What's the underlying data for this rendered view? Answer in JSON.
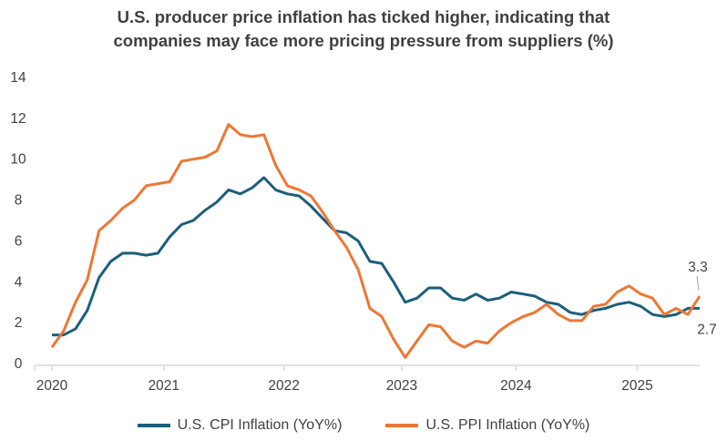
{
  "chart_data": {
    "type": "line",
    "title": "U.S. producer price inflation has ticked higher, indicating that companies may face more pricing pressure from suppliers (%)",
    "title_lines": [
      "U.S. producer price inflation has ticked higher, indicating that",
      "companies may face more pricing pressure from suppliers (%)"
    ],
    "xlabel": "",
    "ylabel": "",
    "ylim": [
      0,
      14
    ],
    "yticks": [
      0,
      2,
      4,
      6,
      8,
      10,
      12,
      14
    ],
    "x_unit": "monthly observation index",
    "xlim": [
      0,
      55
    ],
    "xticks": [
      {
        "label": "2020",
        "at": 0
      },
      {
        "label": "2021",
        "at": 9.5
      },
      {
        "label": "2022",
        "at": 19.7
      },
      {
        "label": "2023",
        "at": 29.7
      },
      {
        "label": "2024",
        "at": 39.4
      },
      {
        "label": "2025",
        "at": 49.7
      }
    ],
    "grid": false,
    "legend_position": "bottom",
    "series": [
      {
        "name": "U.S. CPI Inflation (YoY%)",
        "color": "#1b5f7d",
        "values": [
          1.4,
          1.4,
          1.7,
          2.6,
          4.2,
          5.0,
          5.4,
          5.4,
          5.3,
          5.4,
          6.2,
          6.8,
          7.0,
          7.5,
          7.9,
          8.5,
          8.3,
          8.6,
          9.1,
          8.5,
          8.3,
          8.2,
          7.7,
          7.1,
          6.5,
          6.4,
          6.0,
          5.0,
          4.9,
          4.0,
          3.0,
          3.2,
          3.7,
          3.7,
          3.2,
          3.1,
          3.4,
          3.1,
          3.2,
          3.5,
          3.4,
          3.3,
          3.0,
          2.9,
          2.5,
          2.4,
          2.6,
          2.7,
          2.9,
          3.0,
          2.8,
          2.4,
          2.3,
          2.4,
          2.7,
          2.7
        ],
        "end_label": "2.7"
      },
      {
        "name": "U.S. PPI Inflation (YoY%)",
        "color": "#ee7733",
        "values": [
          0.8,
          1.6,
          3.0,
          4.1,
          6.5,
          7.0,
          7.6,
          8.0,
          8.7,
          8.8,
          8.9,
          9.9,
          10.0,
          10.1,
          10.4,
          11.7,
          11.2,
          11.1,
          11.2,
          9.7,
          8.7,
          8.5,
          8.2,
          7.4,
          6.5,
          5.7,
          4.6,
          2.7,
          2.3,
          1.2,
          0.3,
          1.1,
          1.9,
          1.8,
          1.1,
          0.8,
          1.1,
          1.0,
          1.6,
          2.0,
          2.3,
          2.5,
          2.9,
          2.4,
          2.1,
          2.1,
          2.8,
          2.9,
          3.5,
          3.8,
          3.4,
          3.2,
          2.4,
          2.7,
          2.4,
          3.3
        ],
        "end_label": "3.3"
      }
    ]
  }
}
